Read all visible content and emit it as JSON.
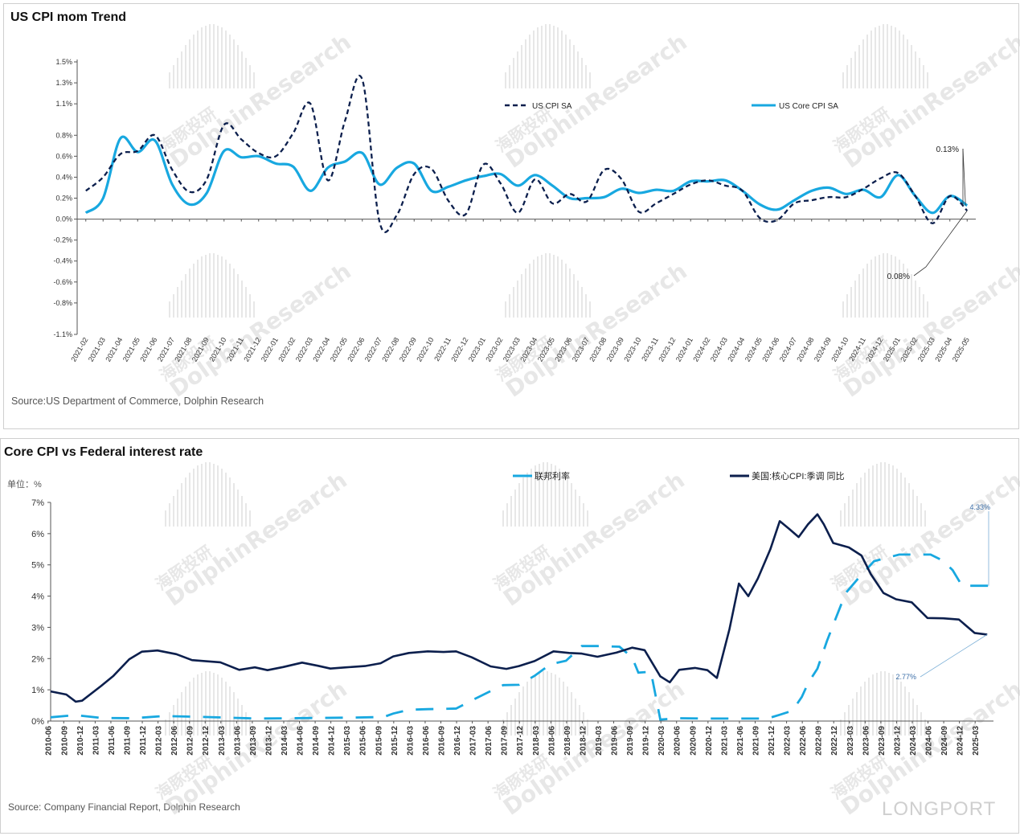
{
  "colors": {
    "light_blue": "#18a8e0",
    "navy": "#0c1f4d",
    "axis": "#555555",
    "watermark": "#cfcfcf"
  },
  "watermark": {
    "brand_cn": "海豚投研",
    "brand_en": "DolphinResearch",
    "corner_brand": "LONGPORT"
  },
  "chart1": {
    "panel_title": "US CPI mom Trend",
    "source": "Source:US Department of Commerce, Dolphin Research",
    "chart_data": {
      "type": "line",
      "title": "US CPI mom Trend",
      "ylim": [
        -1.1,
        1.5
      ],
      "y_ticks": [
        "1.5%",
        "1.3%",
        "1.1%",
        "0.8%",
        "0.6%",
        "0.4%",
        "0.2%",
        "0.0%",
        "-0.2%",
        "-0.4%",
        "-0.6%",
        "-0.8%",
        "-1.1%"
      ],
      "y_tick_values": [
        1.5,
        1.3,
        1.1,
        0.8,
        0.6,
        0.4,
        0.2,
        0.0,
        -0.2,
        -0.4,
        -0.6,
        -0.8,
        -1.1
      ],
      "categories": [
        "2021-02",
        "2021-03",
        "2021-04",
        "2021-05",
        "2021-06",
        "2021-07",
        "2021-08",
        "2021-09",
        "2021-10",
        "2021-11",
        "2021-12",
        "2022-01",
        "2022-02",
        "2022-03",
        "2022-04",
        "2022-05",
        "2022-06",
        "2022-07",
        "2022-08",
        "2022-09",
        "2022-10",
        "2022-11",
        "2022-12",
        "2023-01",
        "2023-02",
        "2023-03",
        "2023-04",
        "2023-05",
        "2023-06",
        "2023-07",
        "2023-08",
        "2023-09",
        "2023-10",
        "2023-11",
        "2023-12",
        "2024-01",
        "2024-02",
        "2024-03",
        "2024-04",
        "2024-05",
        "2024-06",
        "2024-07",
        "2024-08",
        "2024-09",
        "2024-10",
        "2024-11",
        "2024-12",
        "2025-01",
        "2025-02",
        "2025-03",
        "2025-04",
        "2025-05"
      ],
      "series": [
        {
          "name": "US CPI SA",
          "style": "dashed",
          "color": "#0c1f4d",
          "values": [
            0.27,
            0.4,
            0.62,
            0.65,
            0.8,
            0.47,
            0.26,
            0.38,
            0.9,
            0.76,
            0.63,
            0.6,
            0.82,
            1.1,
            0.37,
            0.94,
            1.33,
            -0.03,
            0.04,
            0.43,
            0.48,
            0.17,
            0.05,
            0.52,
            0.34,
            0.06,
            0.38,
            0.15,
            0.24,
            0.17,
            0.47,
            0.38,
            0.07,
            0.15,
            0.24,
            0.33,
            0.37,
            0.32,
            0.27,
            0.01,
            -0.01,
            0.15,
            0.18,
            0.21,
            0.21,
            0.29,
            0.39,
            0.44,
            0.22,
            -0.04,
            0.22,
            0.08
          ]
        },
        {
          "name": "US Core CPI SA",
          "style": "solid",
          "color": "#18a8e0",
          "values": [
            0.06,
            0.2,
            0.77,
            0.64,
            0.75,
            0.33,
            0.14,
            0.25,
            0.65,
            0.59,
            0.6,
            0.53,
            0.5,
            0.27,
            0.49,
            0.55,
            0.63,
            0.33,
            0.49,
            0.53,
            0.27,
            0.31,
            0.37,
            0.41,
            0.43,
            0.32,
            0.42,
            0.32,
            0.2,
            0.2,
            0.21,
            0.29,
            0.25,
            0.28,
            0.27,
            0.36,
            0.36,
            0.37,
            0.27,
            0.14,
            0.09,
            0.18,
            0.27,
            0.3,
            0.24,
            0.28,
            0.21,
            0.42,
            0.22,
            0.06,
            0.22,
            0.13
          ]
        }
      ],
      "legend": "top",
      "annotations": [
        "0.13%",
        "0.08%"
      ],
      "grid": false
    }
  },
  "chart2": {
    "panel_title": "Core CPI vs Federal interest rate",
    "unit_label": "单位：%",
    "source": "Source: Company Financial Report,  Dolphin Research",
    "chart_data": {
      "type": "line",
      "title": "Core CPI vs Federal interest rate",
      "ylabel": "单位：%",
      "ylim": [
        0,
        7
      ],
      "y_ticks": [
        "7%",
        "6%",
        "5%",
        "4%",
        "3%",
        "2%",
        "1%",
        "0%"
      ],
      "y_tick_values": [
        7,
        6,
        5,
        4,
        3,
        2,
        1,
        0
      ],
      "x_tick_labels": [
        "2010-06",
        "2010-09",
        "2010-12",
        "2011-03",
        "2011-06",
        "2011-09",
        "2011-12",
        "2012-03",
        "2012-06",
        "2012-09",
        "2012-12",
        "2013-03",
        "2013-06",
        "2013-09",
        "2013-12",
        "2014-03",
        "2014-06",
        "2014-09",
        "2014-12",
        "2015-03",
        "2015-06",
        "2015-09",
        "2015-12",
        "2016-03",
        "2016-06",
        "2016-09",
        "2016-12",
        "2017-03",
        "2017-06",
        "2017-09",
        "2017-12",
        "2018-03",
        "2018-06",
        "2018-09",
        "2018-12",
        "2019-03",
        "2019-06",
        "2019-09",
        "2019-12",
        "2020-03",
        "2020-06",
        "2020-09",
        "2020-12",
        "2021-03",
        "2021-06",
        "2021-09",
        "2021-12",
        "2022-03",
        "2022-06",
        "2022-09",
        "2022-12",
        "2023-03",
        "2023-06",
        "2023-09",
        "2023-12",
        "2024-03",
        "2024-06",
        "2024-09",
        "2024-12",
        "2025-03"
      ],
      "series": [
        {
          "name": "联邦利率",
          "style": "dashed",
          "color": "#18a8e0",
          "x": [
            2010.5,
            2010.9,
            2011.3,
            2011.8,
            2012.3,
            2012.8,
            2013.3,
            2013.8,
            2014.3,
            2014.8,
            2015.3,
            2015.8,
            2015.95,
            2016.2,
            2016.5,
            2016.95,
            2017.2,
            2017.45,
            2017.7,
            2017.95,
            2018.2,
            2018.45,
            2018.7,
            2018.95,
            2019.2,
            2019.55,
            2019.75,
            2019.85,
            2020.05,
            2020.2,
            2020.5,
            2021.0,
            2021.5,
            2021.9,
            2022.1,
            2022.3,
            2022.45,
            2022.55,
            2022.7,
            2022.85,
            2022.95,
            2023.15,
            2023.35,
            2023.6,
            2024.0,
            2024.5,
            2024.7,
            2024.85,
            2025.0,
            2025.5
          ],
          "values": [
            0.12,
            0.19,
            0.1,
            0.09,
            0.16,
            0.14,
            0.11,
            0.08,
            0.09,
            0.1,
            0.11,
            0.13,
            0.24,
            0.36,
            0.38,
            0.4,
            0.66,
            0.91,
            1.15,
            1.16,
            1.45,
            1.82,
            1.93,
            2.4,
            2.4,
            2.38,
            2.04,
            1.55,
            1.58,
            0.05,
            0.09,
            0.08,
            0.08,
            0.08,
            0.2,
            0.33,
            0.77,
            1.21,
            1.68,
            2.56,
            3.08,
            4.1,
            4.57,
            5.12,
            5.33,
            5.33,
            5.13,
            4.83,
            4.33,
            4.33
          ]
        },
        {
          "name": "美国:核心CPI:季调 同比",
          "style": "solid",
          "color": "#0c1f4d",
          "x": [
            2010.5,
            2010.75,
            2010.9,
            2011.0,
            2011.3,
            2011.5,
            2011.75,
            2011.95,
            2012.2,
            2012.5,
            2012.75,
            2012.95,
            2013.2,
            2013.5,
            2013.75,
            2013.95,
            2014.2,
            2014.5,
            2014.75,
            2014.95,
            2015.2,
            2015.5,
            2015.75,
            2015.95,
            2016.2,
            2016.5,
            2016.75,
            2016.95,
            2017.2,
            2017.5,
            2017.75,
            2017.95,
            2018.2,
            2018.5,
            2018.75,
            2018.95,
            2019.2,
            2019.5,
            2019.75,
            2019.95,
            2020.2,
            2020.35,
            2020.5,
            2020.75,
            2020.95,
            2021.1,
            2021.3,
            2021.45,
            2021.6,
            2021.75,
            2021.95,
            2022.1,
            2022.25,
            2022.4,
            2022.55,
            2022.7,
            2022.8,
            2022.95,
            2023.2,
            2023.4,
            2023.55,
            2023.75,
            2023.95,
            2024.2,
            2024.45,
            2024.7,
            2024.95,
            2025.2,
            2025.4
          ],
          "values": [
            0.95,
            0.85,
            0.62,
            0.65,
            1.12,
            1.45,
            1.98,
            2.22,
            2.26,
            2.14,
            1.95,
            1.92,
            1.88,
            1.64,
            1.72,
            1.63,
            1.73,
            1.87,
            1.77,
            1.68,
            1.72,
            1.76,
            1.85,
            2.07,
            2.18,
            2.23,
            2.21,
            2.23,
            2.04,
            1.75,
            1.67,
            1.76,
            1.92,
            2.23,
            2.18,
            2.16,
            2.06,
            2.19,
            2.35,
            2.27,
            1.43,
            1.24,
            1.64,
            1.7,
            1.63,
            1.38,
            2.95,
            4.4,
            4.0,
            4.56,
            5.5,
            6.4,
            6.15,
            5.89,
            6.3,
            6.62,
            6.3,
            5.7,
            5.56,
            5.3,
            4.7,
            4.1,
            3.9,
            3.8,
            3.3,
            3.29,
            3.25,
            2.82,
            2.77
          ]
        }
      ],
      "legend": "top",
      "annotations": [
        "4.33%",
        "2.77%"
      ],
      "grid": false
    }
  }
}
